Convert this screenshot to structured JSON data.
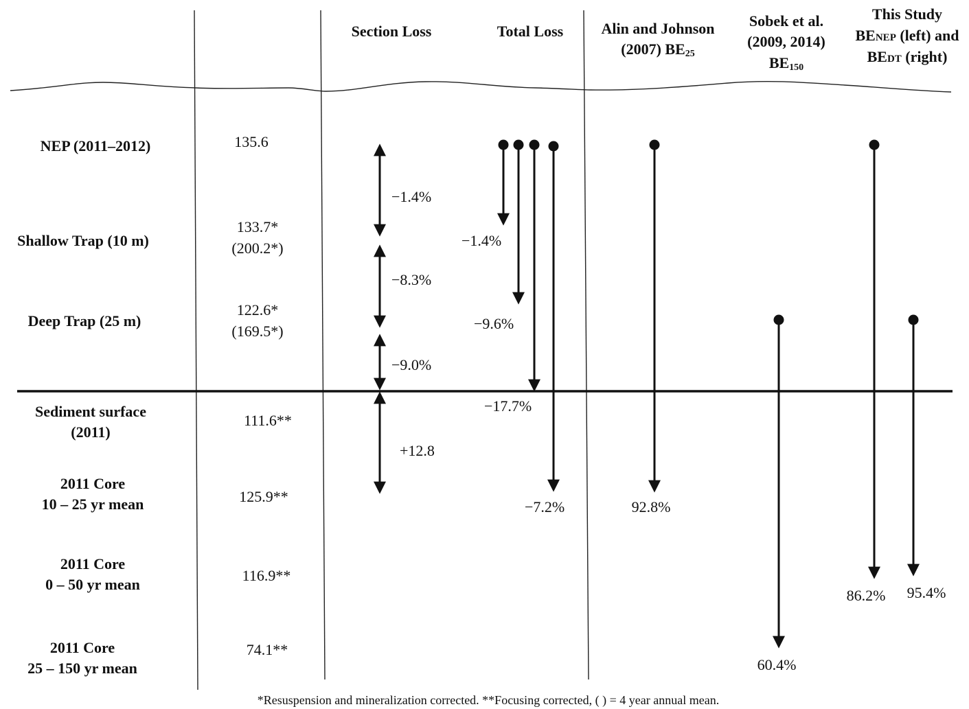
{
  "headers": {
    "section_loss": "Section Loss",
    "total_loss": "Total Loss",
    "alin_line1": "Alin and Johnson",
    "alin_line2_pre": "(2007) BE",
    "alin_sub": "25",
    "sobek_line1": "Sobek et al.",
    "sobek_line2": "(2009, 2014)",
    "sobek_line3_pre": "BE",
    "sobek_sub": "150",
    "study_line1": "This Study",
    "study_line2_pre": "BE",
    "study_line2_sub": "NEP",
    "study_line2_post": " (left) and",
    "study_line3_pre": "BE",
    "study_line3_sub": "DT",
    "study_line3_post": " (right)"
  },
  "rows": [
    {
      "label": [
        "NEP (2011–2012)"
      ],
      "value": [
        "135.6"
      ]
    },
    {
      "label": [
        "Shallow Trap (10 m)"
      ],
      "value": [
        "133.7*",
        "(200.2*)"
      ]
    },
    {
      "label": [
        "Deep Trap (25 m)"
      ],
      "value": [
        "122.6*",
        "(169.5*)"
      ]
    },
    {
      "label": [
        "Sediment surface",
        "(2011)"
      ],
      "value": [
        "111.6**"
      ]
    },
    {
      "label": [
        "2011 Core",
        "10 – 25 yr mean"
      ],
      "value": [
        "125.9**"
      ]
    },
    {
      "label": [
        "2011 Core",
        "0 – 50 yr mean"
      ],
      "value": [
        "116.9**"
      ]
    },
    {
      "label": [
        "2011 Core",
        "25 – 150 yr mean"
      ],
      "value": [
        "74.1**"
      ]
    }
  ],
  "section_losses": [
    "−1.4%",
    "−8.3%",
    "−9.0%",
    "+12.8"
  ],
  "total_losses": [
    "−1.4%",
    "−9.6%",
    "−17.7%",
    "−7.2%"
  ],
  "burial_efficiencies": {
    "alin": "92.8%",
    "sobek": "60.4%",
    "study_nep": "86.2%",
    "study_dt": "95.4%"
  },
  "footnote": "*Resuspension and mineralization corrected. **Focusing corrected, ( ) = 4 year annual mean."
}
